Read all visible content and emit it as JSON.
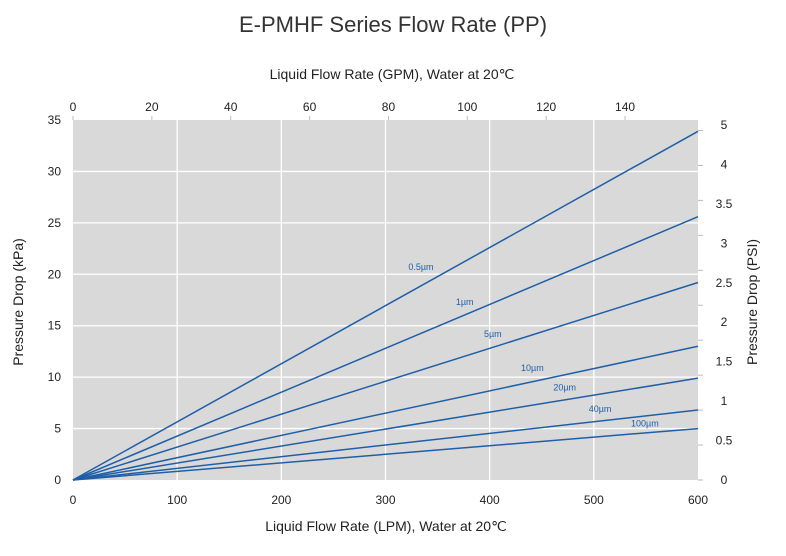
{
  "chart_data": {
    "type": "line",
    "title": "E-PMHF Series Flow Rate (PP)",
    "xlabel": "Liquid Flow Rate (LPM), Water at 20℃",
    "x2label": "Liquid Flow Rate (GPM), Water at 20℃",
    "ylabel": "Pressure Drop (kPa)",
    "y2label": "Pressure Drop (PSI)",
    "xlim": [
      0,
      600
    ],
    "ylim": [
      0,
      35
    ],
    "x2lim": [
      0,
      158.5
    ],
    "xticks": [
      0,
      100,
      200,
      300,
      400,
      500,
      600
    ],
    "yticks": [
      0,
      5,
      10,
      15,
      20,
      25,
      30,
      35
    ],
    "x2ticks": [
      0,
      20,
      40,
      60,
      80,
      100,
      120,
      140
    ],
    "y2ticklabels": [
      "0",
      "0.5",
      "1",
      "1.5",
      "2",
      "2.5",
      "3",
      "3.5",
      "4",
      "5"
    ],
    "grid": true,
    "series": [
      {
        "name": "0.5µm",
        "x": [
          0,
          600
        ],
        "y": [
          0,
          33.9
        ],
        "label_at": [
          334,
          20.4
        ]
      },
      {
        "name": "1µm",
        "x": [
          0,
          600
        ],
        "y": [
          0,
          25.6
        ],
        "label_at": [
          376,
          17.0
        ]
      },
      {
        "name": "5µm",
        "x": [
          0,
          600
        ],
        "y": [
          0,
          19.2
        ],
        "label_at": [
          403,
          13.9
        ]
      },
      {
        "name": "10µm",
        "x": [
          0,
          600
        ],
        "y": [
          0,
          13.0
        ],
        "label_at": [
          441,
          10.6
        ]
      },
      {
        "name": "20µm",
        "x": [
          0,
          600
        ],
        "y": [
          0,
          9.9
        ],
        "label_at": [
          472,
          8.7
        ]
      },
      {
        "name": "40µm",
        "x": [
          0,
          600
        ],
        "y": [
          0,
          6.8
        ],
        "label_at": [
          506,
          6.6
        ]
      },
      {
        "name": "100µm",
        "x": [
          0,
          600
        ],
        "y": [
          0,
          5.0
        ],
        "label_at": [
          549,
          5.2
        ]
      }
    ],
    "colors": {
      "line": "#1f5fa8",
      "plot_bg": "#d9d9d9",
      "grid": "#ffffff",
      "label": "#1f5fa8"
    }
  }
}
